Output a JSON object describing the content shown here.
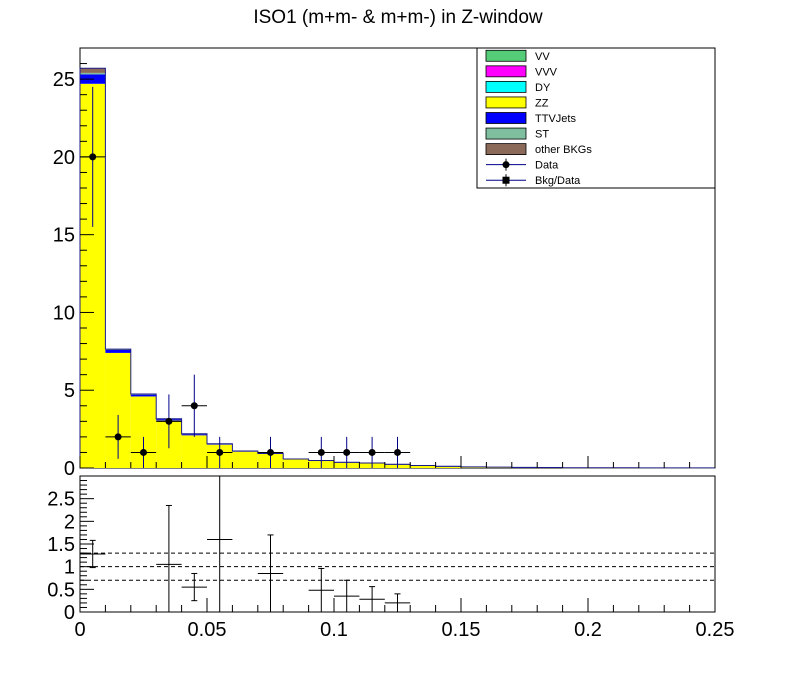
{
  "chart_data": [
    {
      "type": "histogram-stack",
      "title": "ISO1 (m+m- & m+m-) in Z-window",
      "xlim": [
        0,
        0.25
      ],
      "ylim": [
        0,
        27
      ],
      "y_ticks": [
        0,
        5,
        10,
        15,
        20,
        25
      ],
      "bin_width": 0.01,
      "bin_edges": [
        0,
        0.01,
        0.02,
        0.03,
        0.04,
        0.05,
        0.06,
        0.07,
        0.08,
        0.09,
        0.1,
        0.11,
        0.12,
        0.13,
        0.14,
        0.15,
        0.16,
        0.17,
        0.18,
        0.19,
        0.2,
        0.21,
        0.22,
        0.23,
        0.24,
        0.25
      ],
      "legend": [
        {
          "name": "VV",
          "color": "#55cc77",
          "kind": "fill"
        },
        {
          "name": "VVV",
          "color": "#ff00ff",
          "kind": "fill"
        },
        {
          "name": "DY",
          "color": "#00ffff",
          "kind": "fill"
        },
        {
          "name": "ZZ",
          "color": "#ffff00",
          "kind": "fill"
        },
        {
          "name": "TTVJets",
          "color": "#0000ff",
          "kind": "fill"
        },
        {
          "name": "ST",
          "color": "#7fbf9f",
          "kind": "fill"
        },
        {
          "name": "other BKGs",
          "color": "#8b6a5a",
          "kind": "fill"
        },
        {
          "name": "Data",
          "color": "#000000",
          "kind": "marker-circle"
        },
        {
          "name": "Bkg/Data",
          "color": "#000000",
          "kind": "marker-square"
        }
      ],
      "stack_series": [
        {
          "name": "ZZ",
          "color": "#ffff00",
          "values": [
            24.7,
            7.4,
            4.6,
            3.05,
            2.1,
            1.5,
            1.05,
            0.9,
            0.55,
            0.45,
            0.35,
            0.3,
            0.22,
            0.14,
            0.1,
            0.06,
            0.05,
            0.03,
            0.03,
            0.02,
            0.02,
            0.02,
            0.01,
            0.01,
            0.01
          ]
        },
        {
          "name": "TTVJets",
          "color": "#0000ff",
          "values": [
            0.6,
            0.2,
            0.12,
            0.1,
            0.08,
            0.05,
            0.04,
            0.04,
            0.03,
            0.03,
            0.02,
            0.02,
            0.02,
            0.02,
            0.01,
            0.01,
            0.01,
            0.01,
            0.0,
            0.0,
            0.0,
            0.0,
            0.0,
            0.0,
            0.0
          ]
        },
        {
          "name": "ST",
          "color": "#7fbf9f",
          "values": [
            0.1,
            0.02,
            0.02,
            0.01,
            0.01,
            0.01,
            0.0,
            0.0,
            0.0,
            0.0,
            0.0,
            0.0,
            0.0,
            0.0,
            0.0,
            0.0,
            0.0,
            0.0,
            0.0,
            0.0,
            0.0,
            0.0,
            0.0,
            0.0,
            0.0
          ]
        },
        {
          "name": "other BKGs",
          "color": "#8b6a5a",
          "values": [
            0.3,
            0.02,
            0.02,
            0.01,
            0.01,
            0.0,
            0.0,
            0.0,
            0.0,
            0.0,
            0.0,
            0.0,
            0.0,
            0.0,
            0.0,
            0.0,
            0.0,
            0.0,
            0.0,
            0.0,
            0.0,
            0.0,
            0.0,
            0.0,
            0.0
          ]
        }
      ],
      "data_points": [
        {
          "x": 0.005,
          "y": 20,
          "err": 4.5
        },
        {
          "x": 0.015,
          "y": 2,
          "err": 1.41
        },
        {
          "x": 0.025,
          "y": 1,
          "err": 1.0
        },
        {
          "x": 0.035,
          "y": 3,
          "err": 1.73
        },
        {
          "x": 0.045,
          "y": 4,
          "err": 2.0
        },
        {
          "x": 0.055,
          "y": 1,
          "err": 1.0
        },
        {
          "x": 0.075,
          "y": 1,
          "err": 1.0
        },
        {
          "x": 0.095,
          "y": 1,
          "err": 1.0
        },
        {
          "x": 0.105,
          "y": 1,
          "err": 1.0
        },
        {
          "x": 0.115,
          "y": 1,
          "err": 1.0
        },
        {
          "x": 0.125,
          "y": 1,
          "err": 1.0
        }
      ]
    },
    {
      "type": "ratio",
      "ylabel": "",
      "xlim": [
        0,
        0.25
      ],
      "ylim": [
        0,
        3
      ],
      "y_ticks": [
        0,
        0.5,
        1,
        1.5,
        2,
        2.5
      ],
      "x_ticks": [
        0,
        0.05,
        0.1,
        0.15,
        0.2,
        0.25
      ],
      "reference_lines": [
        0.7,
        1.0,
        1.3
      ],
      "points": [
        {
          "x": 0.005,
          "y": 1.28,
          "err": 0.3
        },
        {
          "x": 0.035,
          "y": 1.05,
          "err": 1.3
        },
        {
          "x": 0.045,
          "y": 0.55,
          "err": 0.3
        },
        {
          "x": 0.055,
          "y": 1.6,
          "err": 1.6
        },
        {
          "x": 0.075,
          "y": 0.85,
          "err": 0.85
        },
        {
          "x": 0.095,
          "y": 0.48,
          "err": 0.48
        },
        {
          "x": 0.105,
          "y": 0.35,
          "err": 0.35
        },
        {
          "x": 0.115,
          "y": 0.28,
          "err": 0.28
        },
        {
          "x": 0.125,
          "y": 0.2,
          "err": 0.2
        }
      ]
    }
  ]
}
